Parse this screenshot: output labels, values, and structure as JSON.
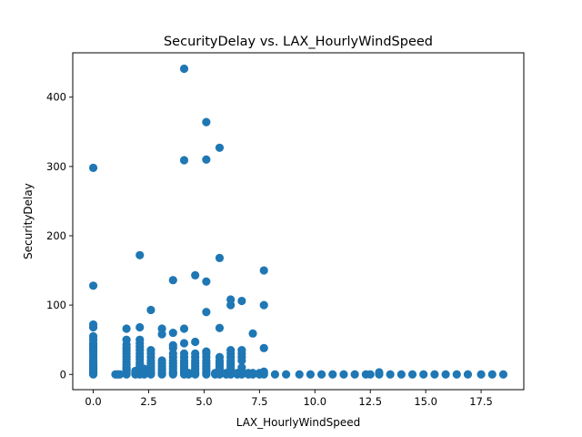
{
  "chart_data": {
    "type": "scatter",
    "title": "SecurityDelay vs. LAX_HourlyWindSpeed",
    "xlabel": "LAX_HourlyWindSpeed",
    "ylabel": "SecurityDelay",
    "xlim": [
      -0.925,
      19.425
    ],
    "ylim": [
      -22,
      464
    ],
    "xticks": [
      0.0,
      2.5,
      5.0,
      7.5,
      10.0,
      12.5,
      15.0,
      17.5
    ],
    "xtick_labels": [
      "0.0",
      "2.5",
      "5.0",
      "7.5",
      "10.0",
      "12.5",
      "15.0",
      "17.5"
    ],
    "yticks": [
      0,
      100,
      200,
      300,
      400
    ],
    "ytick_labels": [
      "0",
      "100",
      "200",
      "300",
      "400"
    ],
    "grid": false,
    "marker_color": "#1f77b4",
    "series": [
      {
        "points": [
          [
            0,
            0
          ],
          [
            0,
            2
          ],
          [
            0,
            4
          ],
          [
            0,
            6
          ],
          [
            0,
            8
          ],
          [
            0,
            10
          ],
          [
            0,
            12
          ],
          [
            0,
            15
          ],
          [
            0,
            18
          ],
          [
            0,
            21
          ],
          [
            0,
            24
          ],
          [
            0,
            28
          ],
          [
            0,
            32
          ],
          [
            0,
            35
          ],
          [
            0,
            38
          ],
          [
            0,
            42
          ],
          [
            0,
            45
          ],
          [
            0,
            50
          ],
          [
            0,
            55
          ],
          [
            0,
            68
          ],
          [
            0,
            72
          ],
          [
            0,
            128
          ],
          [
            0,
            298
          ],
          [
            1,
            0
          ],
          [
            1.1,
            0
          ],
          [
            1.2,
            0
          ],
          [
            1.5,
            0
          ],
          [
            1.5,
            2
          ],
          [
            1.5,
            4
          ],
          [
            1.5,
            6
          ],
          [
            1.5,
            8
          ],
          [
            1.5,
            10
          ],
          [
            1.5,
            14
          ],
          [
            1.5,
            18
          ],
          [
            1.5,
            22
          ],
          [
            1.5,
            26
          ],
          [
            1.5,
            30
          ],
          [
            1.5,
            34
          ],
          [
            1.5,
            38
          ],
          [
            1.5,
            43
          ],
          [
            1.5,
            50
          ],
          [
            1.5,
            66
          ],
          [
            1.9,
            0
          ],
          [
            1.9,
            2
          ],
          [
            1.9,
            5
          ],
          [
            2.1,
            0
          ],
          [
            2.1,
            2
          ],
          [
            2.1,
            4
          ],
          [
            2.1,
            6
          ],
          [
            2.1,
            9
          ],
          [
            2.1,
            12
          ],
          [
            2.1,
            15
          ],
          [
            2.1,
            18
          ],
          [
            2.1,
            22
          ],
          [
            2.1,
            26
          ],
          [
            2.1,
            30
          ],
          [
            2.1,
            35
          ],
          [
            2.1,
            40
          ],
          [
            2.1,
            45
          ],
          [
            2.1,
            50
          ],
          [
            2.1,
            68
          ],
          [
            2.1,
            172
          ],
          [
            2.3,
            0
          ],
          [
            2.3,
            2
          ],
          [
            2.3,
            4
          ],
          [
            2.3,
            8
          ],
          [
            2.6,
            0
          ],
          [
            2.6,
            2
          ],
          [
            2.6,
            4
          ],
          [
            2.6,
            8
          ],
          [
            2.6,
            12
          ],
          [
            2.6,
            16
          ],
          [
            2.6,
            20
          ],
          [
            2.6,
            25
          ],
          [
            2.6,
            30
          ],
          [
            2.6,
            35
          ],
          [
            2.6,
            93
          ],
          [
            3.1,
            0
          ],
          [
            3.1,
            2
          ],
          [
            3.1,
            5
          ],
          [
            3.1,
            8
          ],
          [
            3.1,
            12
          ],
          [
            3.1,
            16
          ],
          [
            3.1,
            20
          ],
          [
            3.1,
            58
          ],
          [
            3.1,
            66
          ],
          [
            3.6,
            0
          ],
          [
            3.6,
            2
          ],
          [
            3.6,
            4
          ],
          [
            3.6,
            8
          ],
          [
            3.6,
            12
          ],
          [
            3.6,
            16
          ],
          [
            3.6,
            20
          ],
          [
            3.6,
            25
          ],
          [
            3.6,
            30
          ],
          [
            3.6,
            38
          ],
          [
            3.6,
            42
          ],
          [
            3.6,
            60
          ],
          [
            3.6,
            136
          ],
          [
            4.1,
            0
          ],
          [
            4.1,
            2
          ],
          [
            4.1,
            5
          ],
          [
            4.1,
            8
          ],
          [
            4.1,
            12
          ],
          [
            4.1,
            16
          ],
          [
            4.1,
            20
          ],
          [
            4.1,
            25
          ],
          [
            4.1,
            30
          ],
          [
            4.1,
            45
          ],
          [
            4.1,
            66
          ],
          [
            4.1,
            309
          ],
          [
            4.1,
            441
          ],
          [
            4.3,
            0
          ],
          [
            4.3,
            2
          ],
          [
            4.6,
            0
          ],
          [
            4.6,
            2
          ],
          [
            4.6,
            5
          ],
          [
            4.6,
            8
          ],
          [
            4.6,
            12
          ],
          [
            4.6,
            16
          ],
          [
            4.6,
            20
          ],
          [
            4.6,
            25
          ],
          [
            4.6,
            30
          ],
          [
            4.6,
            47
          ],
          [
            4.6,
            143
          ],
          [
            5.1,
            0
          ],
          [
            5.1,
            2
          ],
          [
            5.1,
            5
          ],
          [
            5.1,
            8
          ],
          [
            5.1,
            12
          ],
          [
            5.1,
            16
          ],
          [
            5.1,
            20
          ],
          [
            5.1,
            25
          ],
          [
            5.1,
            30
          ],
          [
            5.1,
            33
          ],
          [
            5.1,
            90
          ],
          [
            5.1,
            134
          ],
          [
            5.1,
            310
          ],
          [
            5.1,
            364
          ],
          [
            5.5,
            0
          ],
          [
            5.5,
            2
          ],
          [
            5.7,
            0
          ],
          [
            5.7,
            2
          ],
          [
            5.7,
            5
          ],
          [
            5.7,
            8
          ],
          [
            5.7,
            12
          ],
          [
            5.7,
            16
          ],
          [
            5.7,
            20
          ],
          [
            5.7,
            25
          ],
          [
            5.7,
            67
          ],
          [
            5.7,
            168
          ],
          [
            5.7,
            327
          ],
          [
            6.0,
            0
          ],
          [
            6.0,
            2
          ],
          [
            6.2,
            0
          ],
          [
            6.2,
            2
          ],
          [
            6.2,
            5
          ],
          [
            6.2,
            8
          ],
          [
            6.2,
            12
          ],
          [
            6.2,
            16
          ],
          [
            6.2,
            20
          ],
          [
            6.2,
            25
          ],
          [
            6.2,
            30
          ],
          [
            6.2,
            35
          ],
          [
            6.2,
            100
          ],
          [
            6.2,
            108
          ],
          [
            6.5,
            0
          ],
          [
            6.5,
            2
          ],
          [
            6.7,
            0
          ],
          [
            6.7,
            2
          ],
          [
            6.7,
            5
          ],
          [
            6.7,
            10
          ],
          [
            6.7,
            20
          ],
          [
            6.7,
            25
          ],
          [
            6.7,
            30
          ],
          [
            6.7,
            35
          ],
          [
            6.7,
            106
          ],
          [
            7.0,
            0
          ],
          [
            7.0,
            2
          ],
          [
            7.2,
            0
          ],
          [
            7.2,
            2
          ],
          [
            7.2,
            59
          ],
          [
            7.5,
            0
          ],
          [
            7.5,
            2
          ],
          [
            7.7,
            0
          ],
          [
            7.7,
            2
          ],
          [
            7.7,
            4
          ],
          [
            7.7,
            38
          ],
          [
            7.7,
            100
          ],
          [
            7.7,
            150
          ],
          [
            8.2,
            0
          ],
          [
            8.7,
            0
          ],
          [
            9.3,
            0
          ],
          [
            9.8,
            0
          ],
          [
            10.3,
            0
          ],
          [
            10.8,
            0
          ],
          [
            11.3,
            0
          ],
          [
            11.8,
            0
          ],
          [
            12.3,
            0
          ],
          [
            12.5,
            0
          ],
          [
            12.9,
            0
          ],
          [
            12.9,
            3
          ],
          [
            13.4,
            0
          ],
          [
            13.9,
            0
          ],
          [
            14.4,
            0
          ],
          [
            14.9,
            0
          ],
          [
            15.4,
            0
          ],
          [
            15.9,
            0
          ],
          [
            16.4,
            0
          ],
          [
            16.9,
            0
          ],
          [
            17.5,
            0
          ],
          [
            18.0,
            0
          ],
          [
            18.5,
            0
          ]
        ]
      }
    ]
  }
}
